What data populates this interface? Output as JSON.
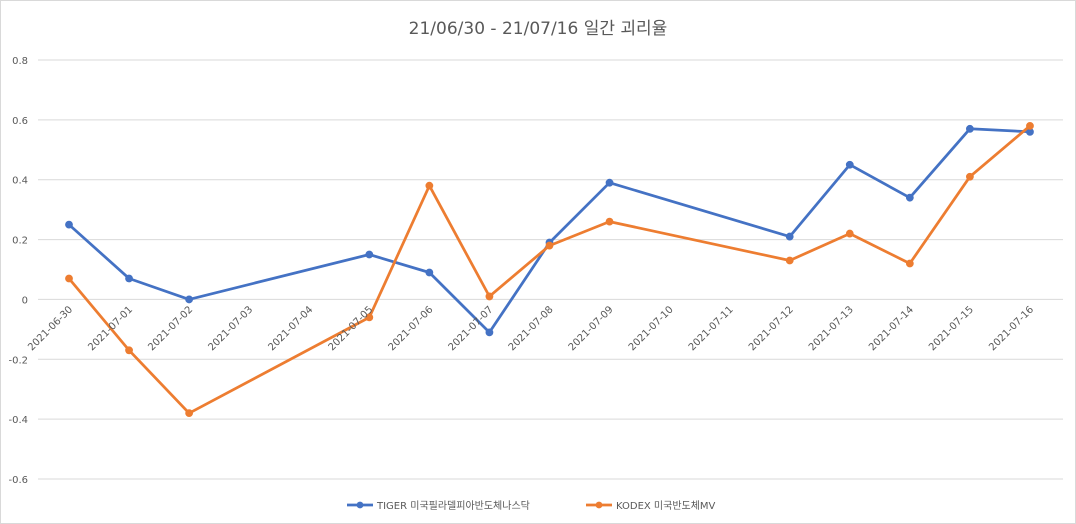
{
  "chart_data": {
    "type": "line",
    "title": "21/06/30 - 21/07/16 일간 괴리율",
    "categories": [
      "2021-06-30",
      "2021-07-01",
      "2021-07-02",
      "2021-07-03",
      "2021-07-04",
      "2021-07-05",
      "2021-07-06",
      "2021-07-07",
      "2021-07-08",
      "2021-07-09",
      "2021-07-10",
      "2021-07-11",
      "2021-07-12",
      "2021-07-13",
      "2021-07-14",
      "2021-07-15",
      "2021-07-16"
    ],
    "yticks": [
      "0.8",
      "0.6",
      "0.4",
      "0.2",
      "0",
      "-0.2",
      "-0.4",
      "-0.6"
    ],
    "ylim": [
      -0.6,
      0.8
    ],
    "grid": true,
    "legend_position": "bottom",
    "series": [
      {
        "name": "TIGER 미국필라델피아반도체나스닥",
        "color": "#4472C4",
        "points": [
          {
            "x": "2021-06-30",
            "y": 0.25
          },
          {
            "x": "2021-07-01",
            "y": 0.07
          },
          {
            "x": "2021-07-02",
            "y": 0.0
          },
          {
            "x": "2021-07-05",
            "y": 0.15
          },
          {
            "x": "2021-07-06",
            "y": 0.09
          },
          {
            "x": "2021-07-07",
            "y": -0.11
          },
          {
            "x": "2021-07-08",
            "y": 0.19
          },
          {
            "x": "2021-07-09",
            "y": 0.39
          },
          {
            "x": "2021-07-12",
            "y": 0.21
          },
          {
            "x": "2021-07-13",
            "y": 0.45
          },
          {
            "x": "2021-07-14",
            "y": 0.34
          },
          {
            "x": "2021-07-15",
            "y": 0.57
          },
          {
            "x": "2021-07-16",
            "y": 0.56
          }
        ]
      },
      {
        "name": "KODEX 미국반도체MV",
        "color": "#ED7D31",
        "points": [
          {
            "x": "2021-06-30",
            "y": 0.07
          },
          {
            "x": "2021-07-01",
            "y": -0.17
          },
          {
            "x": "2021-07-02",
            "y": -0.38
          },
          {
            "x": "2021-07-05",
            "y": -0.06
          },
          {
            "x": "2021-07-06",
            "y": 0.38
          },
          {
            "x": "2021-07-07",
            "y": 0.01
          },
          {
            "x": "2021-07-08",
            "y": 0.18
          },
          {
            "x": "2021-07-09",
            "y": 0.26
          },
          {
            "x": "2021-07-12",
            "y": 0.13
          },
          {
            "x": "2021-07-13",
            "y": 0.22
          },
          {
            "x": "2021-07-14",
            "y": 0.12
          },
          {
            "x": "2021-07-15",
            "y": 0.41
          },
          {
            "x": "2021-07-16",
            "y": 0.58
          }
        ]
      }
    ]
  }
}
